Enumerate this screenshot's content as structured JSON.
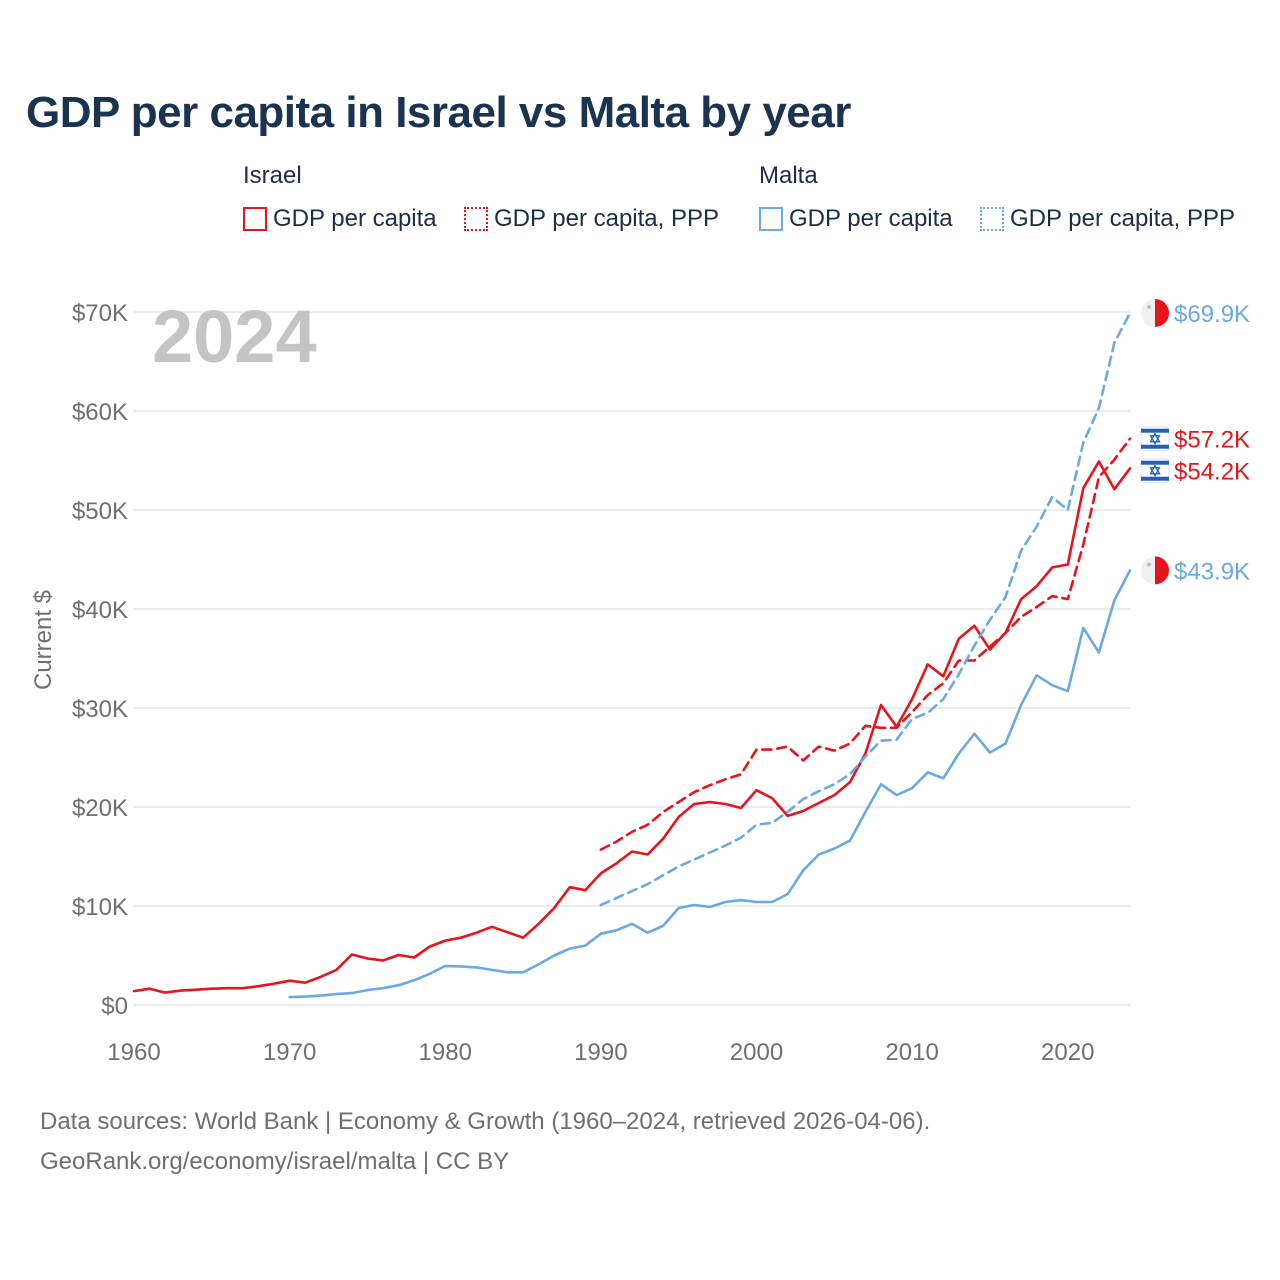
{
  "title": "GDP per capita in Israel vs Malta by year",
  "legend": {
    "groups": [
      {
        "name": "Israel",
        "items": [
          {
            "label": "GDP per capita",
            "style": "solid",
            "color": "#e8141b"
          },
          {
            "label": "GDP per capita, PPP",
            "style": "dotted",
            "color": "#e8141b"
          }
        ]
      },
      {
        "name": "Malta",
        "items": [
          {
            "label": "GDP per capita",
            "style": "solid",
            "color": "#6aa9e3"
          },
          {
            "label": "GDP per capita, PPP",
            "style": "dotted",
            "color": "#6aa9e3"
          }
        ]
      }
    ]
  },
  "year_watermark": "2024",
  "footer": {
    "line1": "Data sources: World Bank | Economy & Growth (1960–2024, retrieved 2026-04-06).",
    "line2": "GeoRank.org/economy/israel/malta | CC BY"
  },
  "chart_data": {
    "type": "line",
    "title": "GDP per capita in Israel vs Malta by year",
    "xlabel": "",
    "ylabel": "Current $",
    "xlim": [
      1960,
      2024
    ],
    "ylim": [
      0,
      70000
    ],
    "x_ticks": [
      1960,
      1970,
      1980,
      1990,
      2000,
      2010,
      2020
    ],
    "x_tick_labels": [
      "1960",
      "1970",
      "1980",
      "1990",
      "2000",
      "2010",
      "2020"
    ],
    "y_ticks": [
      0,
      10000,
      20000,
      30000,
      40000,
      50000,
      60000,
      70000
    ],
    "y_tick_labels": [
      "$0",
      "$10K",
      "$20K",
      "$30K",
      "$40K",
      "$50K",
      "$60K",
      "$70K"
    ],
    "grid": true,
    "series": [
      {
        "name": "Israel GDP per capita",
        "country": "Israel",
        "color": "#e8141b",
        "dash": "solid",
        "end_label": "$54.2K",
        "x": [
          1960,
          1961,
          1962,
          1963,
          1964,
          1965,
          1966,
          1967,
          1968,
          1969,
          1970,
          1971,
          1972,
          1973,
          1974,
          1975,
          1976,
          1977,
          1978,
          1979,
          1980,
          1981,
          1982,
          1983,
          1984,
          1985,
          1986,
          1987,
          1988,
          1989,
          1990,
          1991,
          1992,
          1993,
          1994,
          1995,
          1996,
          1997,
          1998,
          1999,
          2000,
          2001,
          2002,
          2003,
          2004,
          2005,
          2006,
          2007,
          2008,
          2009,
          2010,
          2011,
          2012,
          2013,
          2014,
          2015,
          2016,
          2017,
          2018,
          2019,
          2020,
          2021,
          2022,
          2023,
          2024
        ],
        "values": [
          1400,
          1650,
          1250,
          1450,
          1550,
          1650,
          1700,
          1700,
          1900,
          2150,
          2450,
          2250,
          2850,
          3550,
          5100,
          4700,
          4500,
          5050,
          4800,
          5900,
          6500,
          6800,
          7300,
          7900,
          7350,
          6800,
          8200,
          9800,
          11900,
          11600,
          13300,
          14300,
          15500,
          15200,
          16800,
          19000,
          20300,
          20500,
          20300,
          19900,
          21700,
          20900,
          19100,
          19600,
          20400,
          21200,
          22500,
          25400,
          30300,
          28100,
          30900,
          34400,
          33200,
          37000,
          38300,
          35900,
          37600,
          41000,
          42300,
          44200,
          44500,
          52200,
          54900,
          52100,
          54200
        ]
      },
      {
        "name": "Israel GDP per capita, PPP",
        "country": "Israel",
        "color": "#e8141b",
        "dash": "dashed",
        "end_label": "$57.2K",
        "x": [
          1990,
          1991,
          1992,
          1993,
          1994,
          1995,
          1996,
          1997,
          1998,
          1999,
          2000,
          2001,
          2002,
          2003,
          2004,
          2005,
          2006,
          2007,
          2008,
          2009,
          2010,
          2011,
          2012,
          2013,
          2014,
          2015,
          2016,
          2017,
          2018,
          2019,
          2020,
          2021,
          2022,
          2023,
          2024
        ],
        "values": [
          15700,
          16500,
          17500,
          18200,
          19500,
          20500,
          21500,
          22200,
          22800,
          23300,
          25800,
          25800,
          26100,
          24700,
          26100,
          25700,
          26400,
          28200,
          28000,
          28000,
          29600,
          31300,
          32500,
          34800,
          34800,
          36200,
          37600,
          39200,
          40200,
          41300,
          41000,
          46500,
          53300,
          55100,
          57200
        ]
      },
      {
        "name": "Malta GDP per capita",
        "country": "Malta",
        "color": "#6aa9e3",
        "dash": "solid",
        "end_label": "$43.9K",
        "x": [
          1970,
          1971,
          1972,
          1973,
          1974,
          1975,
          1976,
          1977,
          1978,
          1979,
          1980,
          1981,
          1982,
          1983,
          1984,
          1985,
          1986,
          1987,
          1988,
          1989,
          1990,
          1991,
          1992,
          1993,
          1994,
          1995,
          1996,
          1997,
          1998,
          1999,
          2000,
          2001,
          2002,
          2003,
          2004,
          2005,
          2006,
          2007,
          2008,
          2009,
          2010,
          2011,
          2012,
          2013,
          2014,
          2015,
          2016,
          2017,
          2018,
          2019,
          2020,
          2021,
          2022,
          2023,
          2024
        ],
        "values": [
          800,
          850,
          950,
          1100,
          1200,
          1500,
          1700,
          2000,
          2500,
          3150,
          3950,
          3900,
          3800,
          3550,
          3300,
          3300,
          4100,
          5000,
          5700,
          6000,
          7200,
          7550,
          8200,
          7300,
          8000,
          9800,
          10100,
          9900,
          10400,
          10600,
          10400,
          10400,
          11200,
          13600,
          15200,
          15800,
          16600,
          19500,
          22300,
          21200,
          21900,
          23500,
          22900,
          25400,
          27400,
          25500,
          26400,
          30300,
          33300,
          32300,
          31700,
          38100,
          35600,
          40900,
          43900
        ]
      },
      {
        "name": "Malta GDP per capita, PPP",
        "country": "Malta",
        "color": "#6aa9e3",
        "dash": "dashed",
        "end_label": "$69.9K",
        "x": [
          1990,
          1991,
          1992,
          1993,
          1994,
          1995,
          1996,
          1997,
          1998,
          1999,
          2000,
          2001,
          2002,
          2003,
          2004,
          2005,
          2006,
          2007,
          2008,
          2009,
          2010,
          2011,
          2012,
          2013,
          2014,
          2015,
          2016,
          2017,
          2018,
          2019,
          2020,
          2021,
          2022,
          2023,
          2024
        ],
        "values": [
          10100,
          10800,
          11500,
          12200,
          13100,
          14000,
          14700,
          15400,
          16100,
          16900,
          18200,
          18400,
          19500,
          20800,
          21600,
          22300,
          23300,
          25100,
          26700,
          26800,
          28900,
          29500,
          30900,
          33400,
          36300,
          38900,
          41200,
          45900,
          48300,
          51300,
          50000,
          56800,
          60300,
          66900,
          69900
        ]
      }
    ]
  }
}
